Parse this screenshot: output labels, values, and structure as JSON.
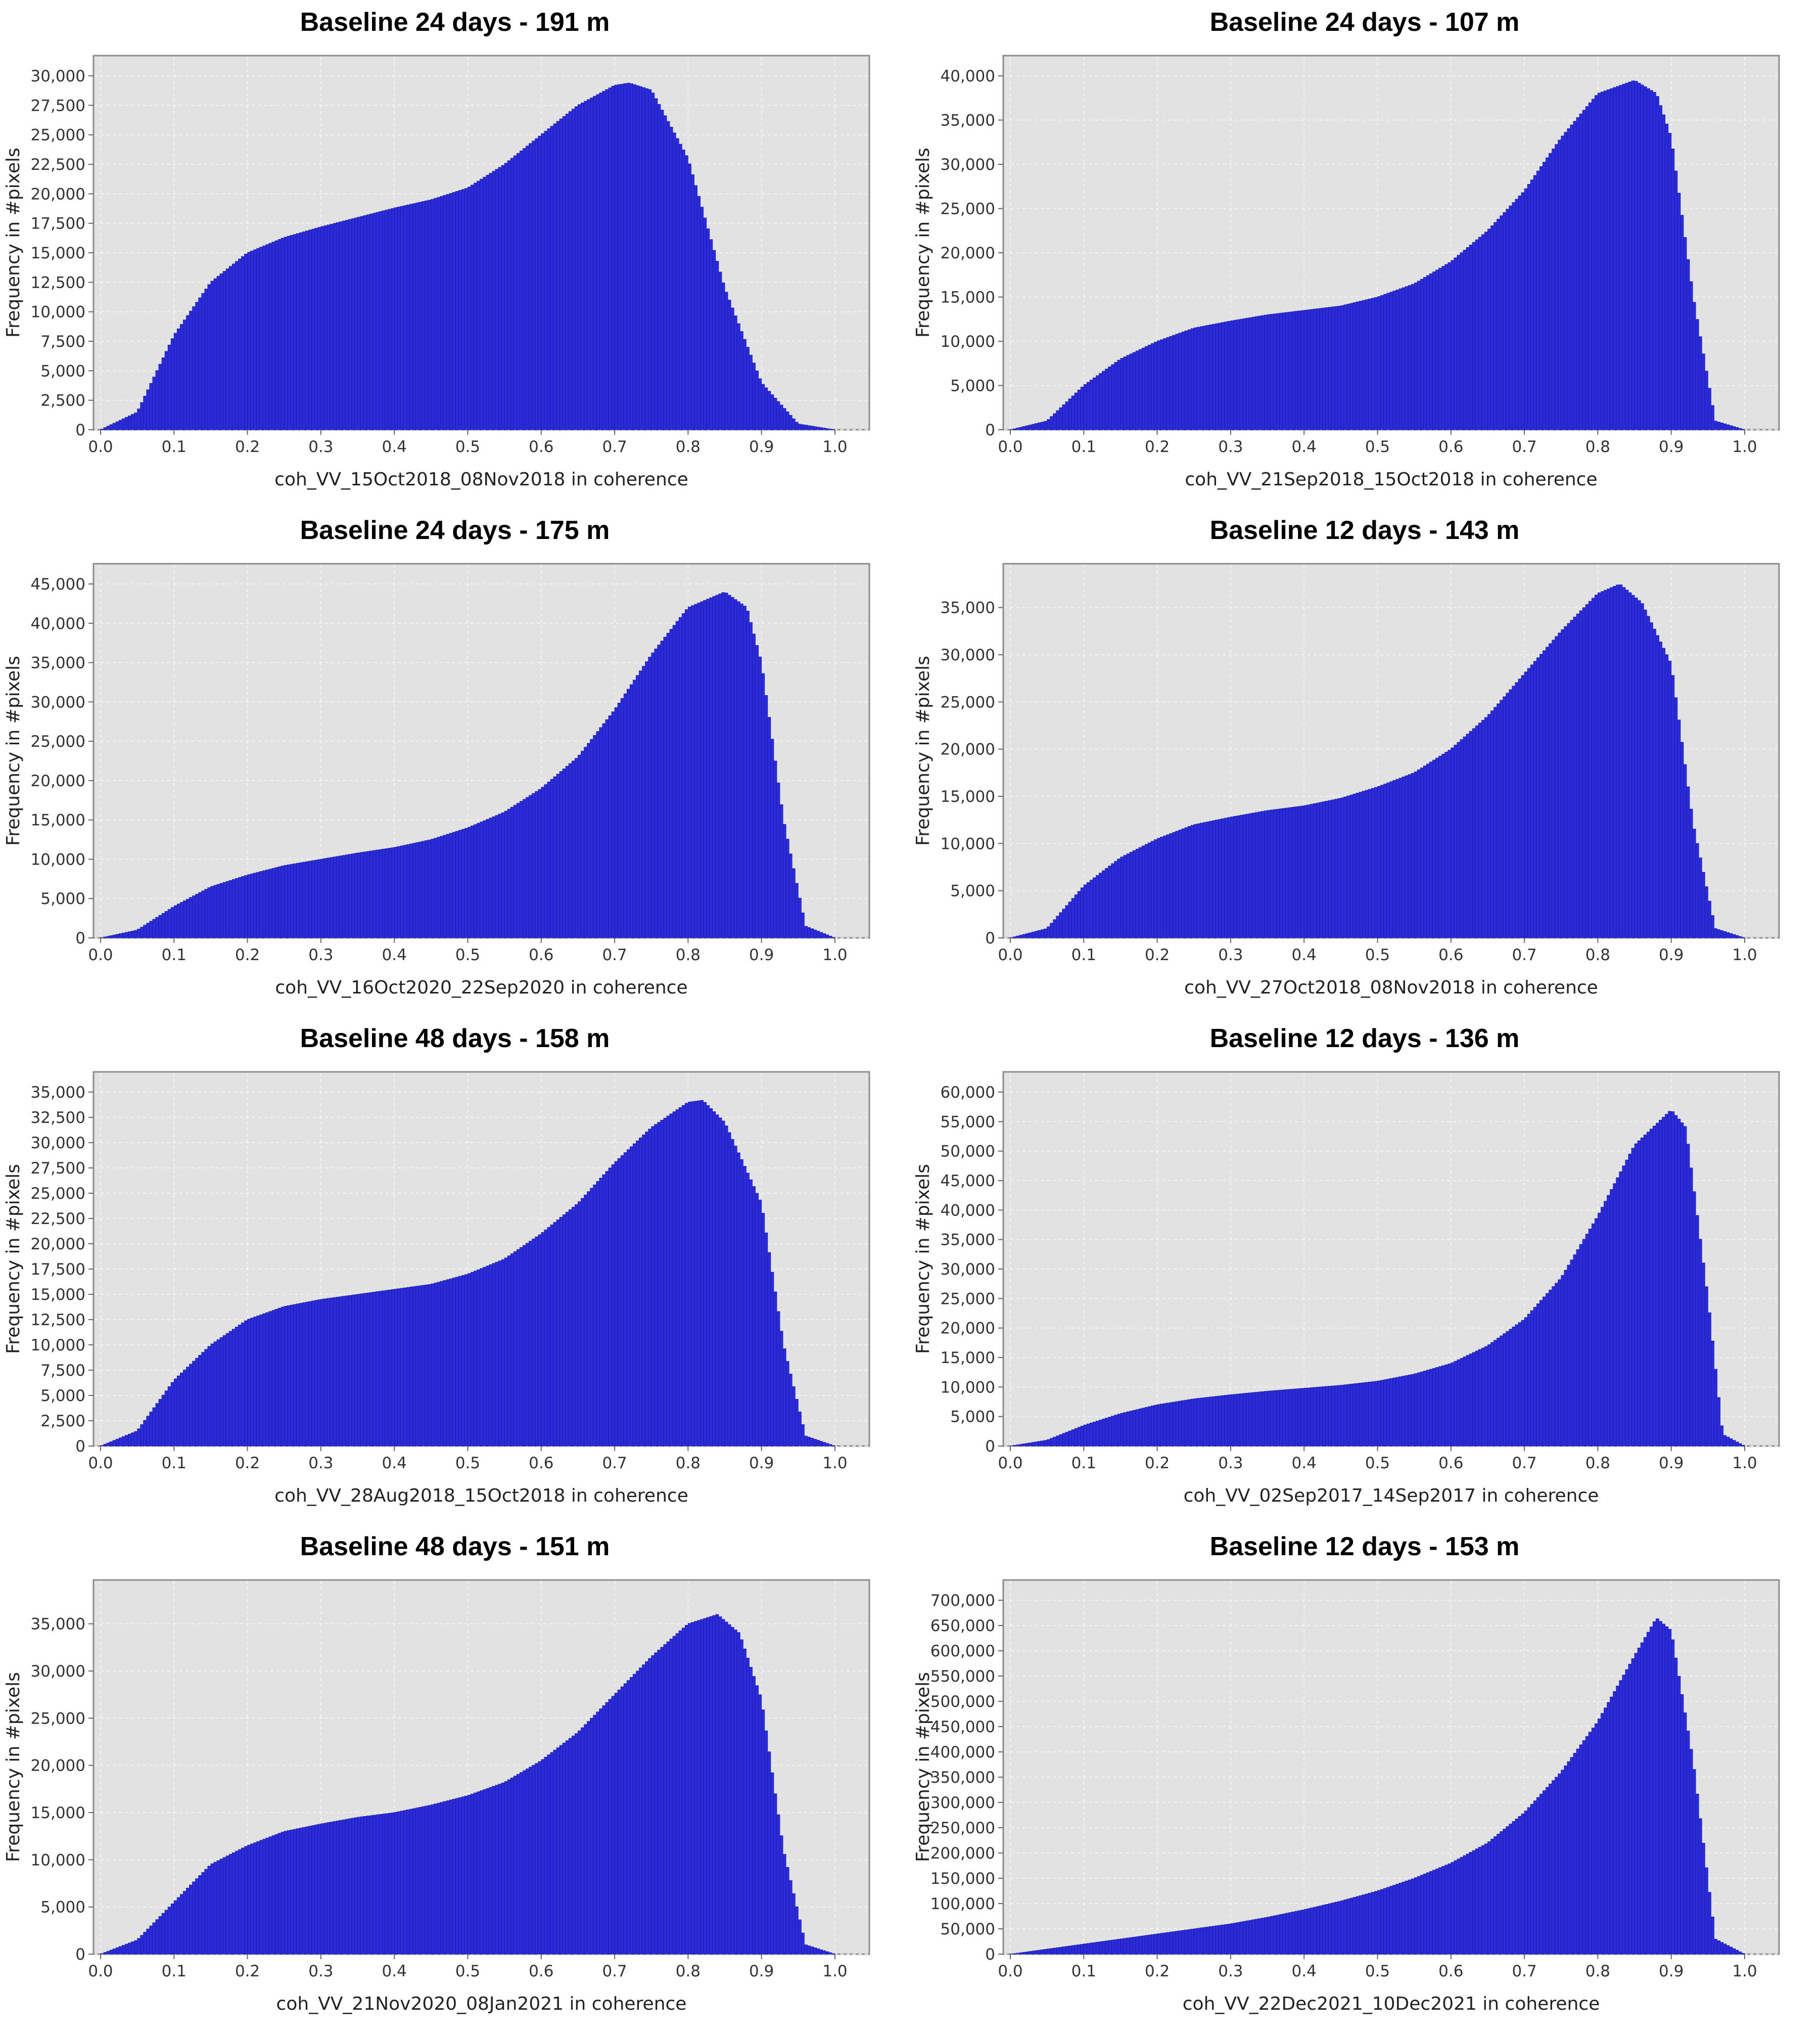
{
  "figure": {
    "layout": "4 rows x 2 columns of histograms",
    "colors": {
      "bar": "#2b2bd9",
      "bar_stroke": "#1a1aa8",
      "plot_bg": "#e2e2e2",
      "grid": "#f4f4f4",
      "frame": "#8c8c8c"
    }
  },
  "chart_data": [
    {
      "type": "bar",
      "title": "Baseline 24 days - 191 m",
      "xlabel": "coh_VV_15Oct2018_08Nov2018 in coherence",
      "ylabel": "Frequency in #pixels",
      "xlim": [
        0,
        1
      ],
      "ylim": [
        0,
        30000
      ],
      "xticks": [
        0.0,
        0.1,
        0.2,
        0.3,
        0.4,
        0.5,
        0.6,
        0.7,
        0.8,
        0.9,
        1.0
      ],
      "xtick_labels": [
        "0.0",
        "0.1",
        "0.2",
        "0.3",
        "0.4",
        "0.5",
        "0.6",
        "0.7",
        "0.8",
        "0.9",
        "1.0"
      ],
      "yticks": [
        0,
        2500,
        5000,
        7500,
        10000,
        12500,
        15000,
        17500,
        20000,
        22500,
        25000,
        27500,
        30000
      ],
      "ytick_labels": [
        "0",
        "2,500",
        "5,000",
        "7,500",
        "10,000",
        "12,500",
        "15,000",
        "17,500",
        "20,000",
        "22,500",
        "25,000",
        "27,500",
        "30,000"
      ],
      "grid": true,
      "bins": [
        0.0,
        0.05,
        0.1,
        0.15,
        0.2,
        0.25,
        0.3,
        0.35,
        0.4,
        0.45,
        0.5,
        0.55,
        0.6,
        0.65,
        0.7,
        0.72,
        0.75,
        0.8,
        0.85,
        0.9,
        0.95,
        1.0
      ],
      "values": [
        0,
        1500,
        8000,
        12500,
        15000,
        16300,
        17200,
        18000,
        18800,
        19500,
        20500,
        22500,
        25000,
        27500,
        29200,
        29400,
        28800,
        23000,
        12000,
        4000,
        500,
        0
      ]
    },
    {
      "type": "bar",
      "title": "Baseline 24 days - 107 m",
      "xlabel": "coh_VV_21Sep2018_15Oct2018 in coherence",
      "ylabel": "Frequency in #pixels",
      "xlim": [
        0,
        1
      ],
      "ylim": [
        0,
        40000
      ],
      "xticks": [
        0.0,
        0.1,
        0.2,
        0.3,
        0.4,
        0.5,
        0.6,
        0.7,
        0.8,
        0.9,
        1.0
      ],
      "xtick_labels": [
        "0.0",
        "0.1",
        "0.2",
        "0.3",
        "0.4",
        "0.5",
        "0.6",
        "0.7",
        "0.8",
        "0.9",
        "1.0"
      ],
      "yticks": [
        0,
        5000,
        10000,
        15000,
        20000,
        25000,
        30000,
        35000,
        40000
      ],
      "ytick_labels": [
        "0",
        "5,000",
        "10,000",
        "15,000",
        "20,000",
        "25,000",
        "30,000",
        "35,000",
        "40,000"
      ],
      "grid": true,
      "bins": [
        0.0,
        0.05,
        0.1,
        0.15,
        0.2,
        0.25,
        0.3,
        0.35,
        0.4,
        0.45,
        0.5,
        0.55,
        0.6,
        0.65,
        0.7,
        0.75,
        0.8,
        0.85,
        0.88,
        0.9,
        0.93,
        0.96,
        1.0
      ],
      "values": [
        0,
        1000,
        5000,
        8000,
        10000,
        11500,
        12300,
        13000,
        13500,
        14000,
        15000,
        16500,
        19000,
        22500,
        27000,
        33000,
        38000,
        39500,
        38000,
        33000,
        15000,
        1000,
        0
      ]
    },
    {
      "type": "bar",
      "title": "Baseline 24 days - 175 m",
      "xlabel": "coh_VV_16Oct2020_22Sep2020 in coherence",
      "ylabel": "Frequency in #pixels",
      "xlim": [
        0,
        1
      ],
      "ylim": [
        0,
        45000
      ],
      "xticks": [
        0.0,
        0.1,
        0.2,
        0.3,
        0.4,
        0.5,
        0.6,
        0.7,
        0.8,
        0.9,
        1.0
      ],
      "xtick_labels": [
        "0.0",
        "0.1",
        "0.2",
        "0.3",
        "0.4",
        "0.5",
        "0.6",
        "0.7",
        "0.8",
        "0.9",
        "1.0"
      ],
      "yticks": [
        0,
        5000,
        10000,
        15000,
        20000,
        25000,
        30000,
        35000,
        40000,
        45000
      ],
      "ytick_labels": [
        "0",
        "5,000",
        "10,000",
        "15,000",
        "20,000",
        "25,000",
        "30,000",
        "35,000",
        "40,000",
        "45,000"
      ],
      "grid": true,
      "bins": [
        0.0,
        0.05,
        0.1,
        0.15,
        0.2,
        0.25,
        0.3,
        0.35,
        0.4,
        0.45,
        0.5,
        0.55,
        0.6,
        0.65,
        0.7,
        0.75,
        0.8,
        0.85,
        0.88,
        0.9,
        0.93,
        0.96,
        1.0
      ],
      "values": [
        0,
        1000,
        4000,
        6500,
        8000,
        9200,
        10000,
        10800,
        11500,
        12500,
        14000,
        16000,
        19000,
        23000,
        29000,
        36000,
        42000,
        44000,
        42000,
        35000,
        15000,
        1500,
        0
      ]
    },
    {
      "type": "bar",
      "title": "Baseline 12 days - 143 m",
      "xlabel": "coh_VV_27Oct2018_08Nov2018 in coherence",
      "ylabel": "Frequency in #pixels",
      "xlim": [
        0,
        1
      ],
      "ylim": [
        0,
        37500
      ],
      "xticks": [
        0.0,
        0.1,
        0.2,
        0.3,
        0.4,
        0.5,
        0.6,
        0.7,
        0.8,
        0.9,
        1.0
      ],
      "xtick_labels": [
        "0.0",
        "0.1",
        "0.2",
        "0.3",
        "0.4",
        "0.5",
        "0.6",
        "0.7",
        "0.8",
        "0.9",
        "1.0"
      ],
      "yticks": [
        0,
        5000,
        10000,
        15000,
        20000,
        25000,
        30000,
        35000
      ],
      "ytick_labels": [
        "0",
        "5,000",
        "10,000",
        "15,000",
        "20,000",
        "25,000",
        "30,000",
        "35,000"
      ],
      "grid": true,
      "bins": [
        0.0,
        0.05,
        0.1,
        0.15,
        0.2,
        0.25,
        0.3,
        0.35,
        0.4,
        0.45,
        0.5,
        0.55,
        0.6,
        0.65,
        0.7,
        0.75,
        0.8,
        0.83,
        0.86,
        0.9,
        0.93,
        0.96,
        1.0
      ],
      "values": [
        0,
        1000,
        5500,
        8500,
        10500,
        12000,
        12800,
        13500,
        14000,
        14800,
        16000,
        17500,
        20000,
        23500,
        28000,
        32500,
        36500,
        37500,
        35500,
        29000,
        12000,
        1000,
        0
      ]
    },
    {
      "type": "bar",
      "title": "Baseline 48 days - 158 m",
      "xlabel": "coh_VV_28Aug2018_15Oct2018 in coherence",
      "ylabel": "Frequency in #pixels",
      "xlim": [
        0,
        1
      ],
      "ylim": [
        0,
        35000
      ],
      "xticks": [
        0.0,
        0.1,
        0.2,
        0.3,
        0.4,
        0.5,
        0.6,
        0.7,
        0.8,
        0.9,
        1.0
      ],
      "xtick_labels": [
        "0.0",
        "0.1",
        "0.2",
        "0.3",
        "0.4",
        "0.5",
        "0.6",
        "0.7",
        "0.8",
        "0.9",
        "1.0"
      ],
      "yticks": [
        0,
        2500,
        5000,
        7500,
        10000,
        12500,
        15000,
        17500,
        20000,
        22500,
        25000,
        27500,
        30000,
        32500,
        35000
      ],
      "ytick_labels": [
        "0",
        "2,500",
        "5,000",
        "7,500",
        "10,000",
        "12,500",
        "15,000",
        "17,500",
        "20,000",
        "22,500",
        "25,000",
        "27,500",
        "30,000",
        "32,500",
        "35,000"
      ],
      "grid": true,
      "bins": [
        0.0,
        0.05,
        0.1,
        0.15,
        0.2,
        0.25,
        0.3,
        0.35,
        0.4,
        0.45,
        0.5,
        0.55,
        0.6,
        0.65,
        0.7,
        0.75,
        0.8,
        0.82,
        0.85,
        0.9,
        0.93,
        0.96,
        1.0
      ],
      "values": [
        0,
        1500,
        6500,
        10000,
        12500,
        13800,
        14500,
        15000,
        15500,
        16000,
        17000,
        18500,
        21000,
        24000,
        28000,
        31500,
        34000,
        34200,
        32000,
        24000,
        10000,
        1000,
        0
      ]
    },
    {
      "type": "bar",
      "title": "Baseline 12 days - 136 m",
      "xlabel": "coh_VV_02Sep2017_14Sep2017 in coherence",
      "ylabel": "Frequency in #pixels",
      "xlim": [
        0,
        1
      ],
      "ylim": [
        0,
        60000
      ],
      "xticks": [
        0.0,
        0.1,
        0.2,
        0.3,
        0.4,
        0.5,
        0.6,
        0.7,
        0.8,
        0.9,
        1.0
      ],
      "xtick_labels": [
        "0.0",
        "0.1",
        "0.2",
        "0.3",
        "0.4",
        "0.5",
        "0.6",
        "0.7",
        "0.8",
        "0.9",
        "1.0"
      ],
      "yticks": [
        0,
        5000,
        10000,
        15000,
        20000,
        25000,
        30000,
        35000,
        40000,
        45000,
        50000,
        55000,
        60000
      ],
      "ytick_labels": [
        "0",
        "5,000",
        "10,000",
        "15,000",
        "20,000",
        "25,000",
        "30,000",
        "35,000",
        "40,000",
        "45,000",
        "50,000",
        "55,000",
        "60,000"
      ],
      "grid": true,
      "bins": [
        0.0,
        0.05,
        0.1,
        0.15,
        0.2,
        0.25,
        0.3,
        0.35,
        0.4,
        0.45,
        0.5,
        0.55,
        0.6,
        0.65,
        0.7,
        0.75,
        0.8,
        0.85,
        0.9,
        0.92,
        0.95,
        0.97,
        1.0
      ],
      "values": [
        0,
        1000,
        3500,
        5500,
        7000,
        8000,
        8700,
        9300,
        9800,
        10300,
        11000,
        12200,
        14000,
        17000,
        21500,
        28500,
        39000,
        51000,
        57000,
        54000,
        25000,
        2000,
        0
      ]
    },
    {
      "type": "bar",
      "title": "Baseline 48 days - 151 m",
      "xlabel": "coh_VV_21Nov2020_08Jan2021 in coherence",
      "ylabel": "Frequency in #pixels",
      "xlim": [
        0,
        1
      ],
      "ylim": [
        0,
        37500
      ],
      "xticks": [
        0.0,
        0.1,
        0.2,
        0.3,
        0.4,
        0.5,
        0.6,
        0.7,
        0.8,
        0.9,
        1.0
      ],
      "xtick_labels": [
        "0.0",
        "0.1",
        "0.2",
        "0.3",
        "0.4",
        "0.5",
        "0.6",
        "0.7",
        "0.8",
        "0.9",
        "1.0"
      ],
      "yticks": [
        0,
        5000,
        10000,
        15000,
        20000,
        25000,
        30000,
        35000
      ],
      "ytick_labels": [
        "0",
        "5,000",
        "10,000",
        "15,000",
        "20,000",
        "25,000",
        "30,000",
        "35,000"
      ],
      "grid": true,
      "bins": [
        0.0,
        0.05,
        0.1,
        0.15,
        0.2,
        0.25,
        0.3,
        0.35,
        0.4,
        0.45,
        0.5,
        0.55,
        0.6,
        0.65,
        0.7,
        0.75,
        0.8,
        0.84,
        0.87,
        0.9,
        0.93,
        0.96,
        1.0
      ],
      "values": [
        0,
        1500,
        5500,
        9500,
        11500,
        13000,
        13800,
        14500,
        15000,
        15800,
        16800,
        18200,
        20500,
        23500,
        27500,
        31500,
        35000,
        36000,
        34000,
        27000,
        11000,
        1000,
        0
      ]
    },
    {
      "type": "bar",
      "title": "Baseline 12 days - 153 m",
      "xlabel": "coh_VV_22Dec2021_10Dec2021 in coherence",
      "ylabel": "Frequency in #pixels",
      "xlim": [
        0,
        1
      ],
      "ylim": [
        0,
        700000
      ],
      "xticks": [
        0.0,
        0.1,
        0.2,
        0.3,
        0.4,
        0.5,
        0.6,
        0.7,
        0.8,
        0.9,
        1.0
      ],
      "xtick_labels": [
        "0.0",
        "0.1",
        "0.2",
        "0.3",
        "0.4",
        "0.5",
        "0.6",
        "0.7",
        "0.8",
        "0.9",
        "1.0"
      ],
      "yticks": [
        0,
        50000,
        100000,
        150000,
        200000,
        250000,
        300000,
        350000,
        400000,
        450000,
        500000,
        550000,
        600000,
        650000,
        700000
      ],
      "ytick_labels": [
        "0",
        "50,000",
        "100,000",
        "150,000",
        "200,000",
        "250,000",
        "300,000",
        "350,000",
        "400,000",
        "450,000",
        "500,000",
        "550,000",
        "600,000",
        "650,000",
        "700,000"
      ],
      "grid": true,
      "bins": [
        0.0,
        0.05,
        0.1,
        0.15,
        0.2,
        0.25,
        0.3,
        0.35,
        0.4,
        0.45,
        0.5,
        0.55,
        0.6,
        0.65,
        0.7,
        0.75,
        0.8,
        0.85,
        0.88,
        0.9,
        0.93,
        0.96,
        1.0
      ],
      "values": [
        0,
        10000,
        20000,
        30000,
        40000,
        50000,
        60000,
        73000,
        88000,
        105000,
        125000,
        150000,
        180000,
        220000,
        280000,
        360000,
        460000,
        590000,
        665000,
        640000,
        380000,
        30000,
        0
      ]
    }
  ]
}
